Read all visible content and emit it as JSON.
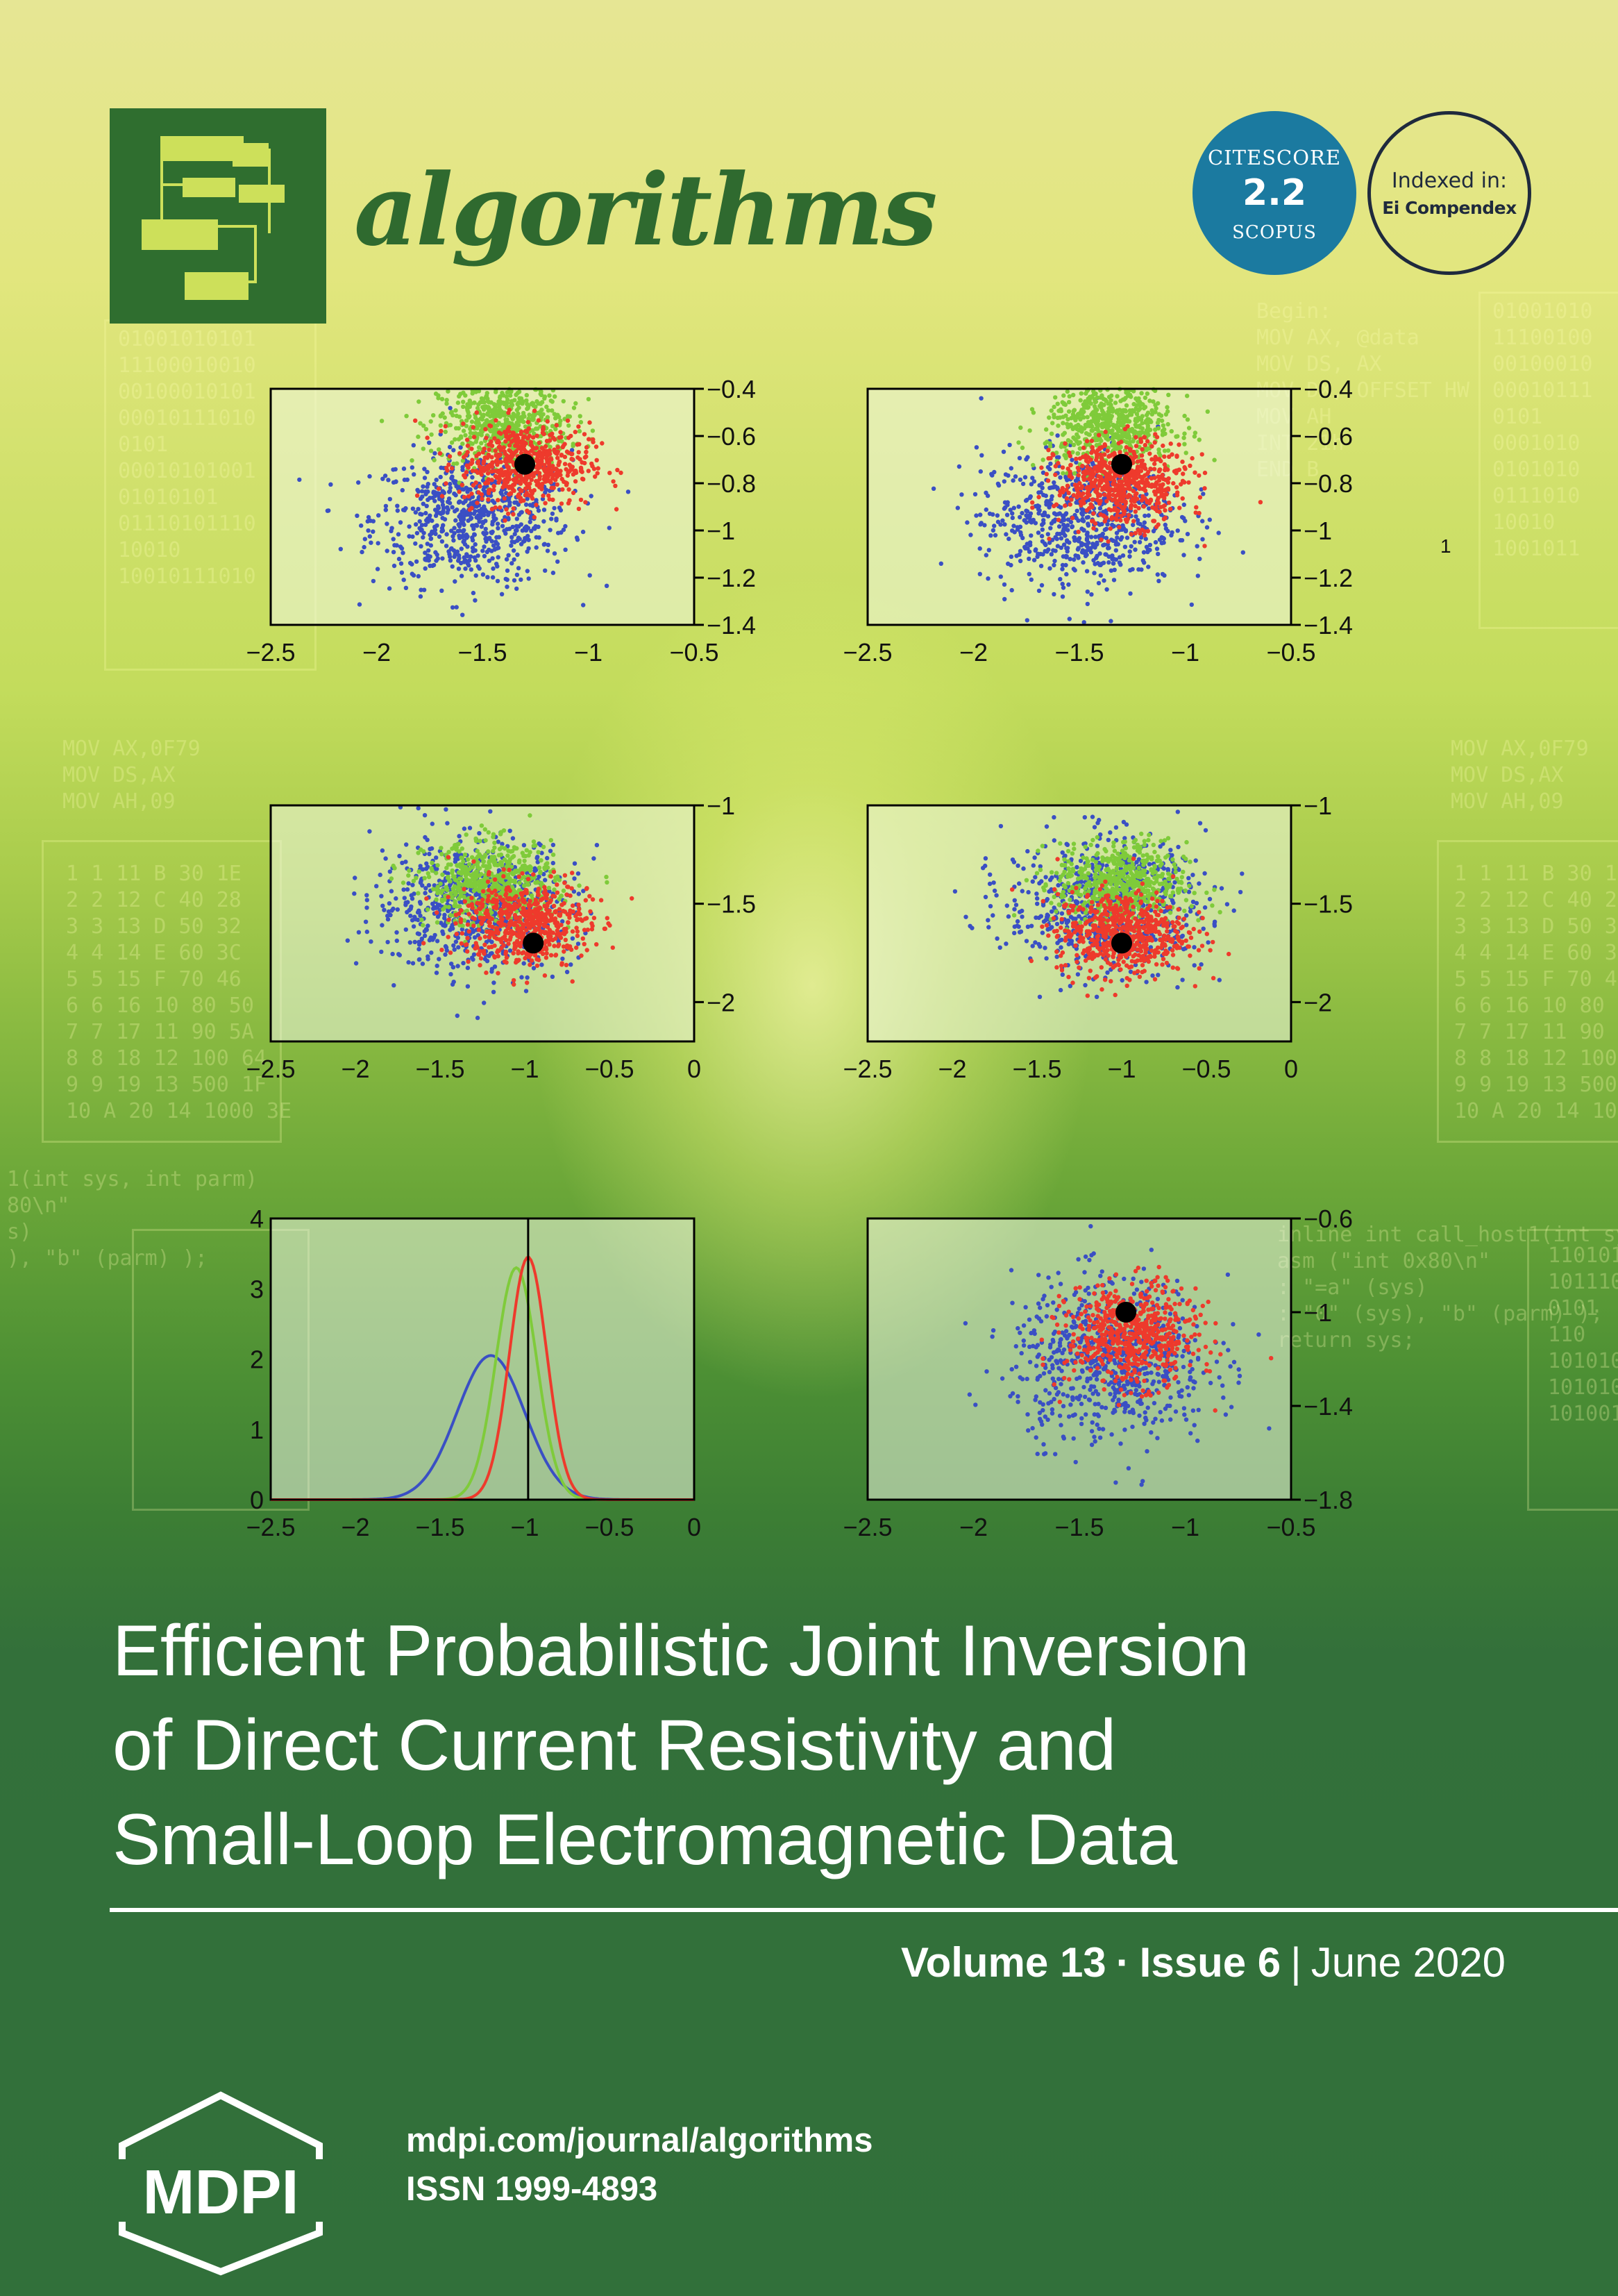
{
  "journal": {
    "name": "algorithms",
    "citescore": {
      "label": "CITESCORE",
      "value": "2.2",
      "source": "SCOPUS"
    },
    "indexed": {
      "label": "Indexed in:",
      "database": "Ei Compendex"
    }
  },
  "plots": {
    "row1_left": {
      "x_ticks": [
        "−2.5",
        "−2",
        "−1.5",
        "−1",
        "−0.5"
      ],
      "y_ticks": [
        "−0.4",
        "−0.6",
        "−0.8",
        "−1",
        "−1.2",
        "−1.4"
      ]
    },
    "row1_right": {
      "x_ticks": [
        "−2.5",
        "−2",
        "−1.5",
        "−1",
        "−0.5"
      ],
      "y_ticks": [
        "−0.4",
        "−0.6",
        "−0.8",
        "−1",
        "−1.2",
        "−1.4"
      ],
      "marker": "1"
    },
    "row2_left": {
      "x_ticks": [
        "−2.5",
        "−2",
        "−1.5",
        "−1",
        "−0.5",
        "0"
      ],
      "y_ticks": [
        "−1",
        "−1.5",
        "−2"
      ]
    },
    "row2_right": {
      "x_ticks": [
        "−2.5",
        "−2",
        "−1.5",
        "−1",
        "−0.5",
        "0"
      ],
      "y_ticks": [
        "−1",
        "−1.5",
        "−2"
      ]
    },
    "row3_left": {
      "x_ticks": [
        "−2.5",
        "−2",
        "−1.5",
        "−1",
        "−0.5",
        "0"
      ],
      "y_ticks": [
        "4",
        "3",
        "2",
        "1",
        "0"
      ]
    },
    "row3_right": {
      "x_ticks": [
        "−2.5",
        "−2",
        "−1.5",
        "−1",
        "−0.5"
      ],
      "y_ticks": [
        "−0.6",
        "−1",
        "−1.4",
        "−1.8"
      ]
    }
  },
  "chart_data": [
    {
      "type": "scatter",
      "xlim": [
        -2.5,
        -0.5
      ],
      "ylim": [
        -1.4,
        -0.4
      ],
      "series": [
        {
          "color": "#3a4fc4",
          "center": [
            -1.55,
            -0.95
          ]
        },
        {
          "color": "#7fcb3a",
          "center": [
            -1.4,
            -0.55
          ]
        },
        {
          "color": "#ee3a2c",
          "center": [
            -1.3,
            -0.72
          ]
        }
      ],
      "marker_point": [
        -1.3,
        -0.72
      ]
    },
    {
      "type": "scatter",
      "xlim": [
        -2.5,
        -0.5
      ],
      "ylim": [
        -1.4,
        -0.4
      ],
      "series": [
        {
          "color": "#3a4fc4",
          "center": [
            -1.5,
            -0.95
          ]
        },
        {
          "color": "#7fcb3a",
          "center": [
            -1.35,
            -0.55
          ]
        },
        {
          "color": "#ee3a2c",
          "center": [
            -1.3,
            -0.8
          ]
        }
      ],
      "marker_point": [
        -1.3,
        -0.72
      ]
    },
    {
      "type": "scatter",
      "xlim": [
        -2.5,
        0
      ],
      "ylim": [
        -2.2,
        -1.0
      ],
      "series": [
        {
          "color": "#3a4fc4",
          "center": [
            -1.3,
            -1.5
          ]
        },
        {
          "color": "#7fcb3a",
          "center": [
            -1.2,
            -1.4
          ]
        },
        {
          "color": "#ee3a2c",
          "center": [
            -1.0,
            -1.6
          ]
        }
      ],
      "marker_point": [
        -0.95,
        -1.7
      ]
    },
    {
      "type": "scatter",
      "xlim": [
        -2.5,
        0
      ],
      "ylim": [
        -2.2,
        -1.0
      ],
      "series": [
        {
          "color": "#3a4fc4",
          "center": [
            -1.1,
            -1.5
          ]
        },
        {
          "color": "#7fcb3a",
          "center": [
            -1.0,
            -1.4
          ]
        },
        {
          "color": "#ee3a2c",
          "center": [
            -1.0,
            -1.65
          ]
        }
      ],
      "marker_point": [
        -1.0,
        -1.7
      ]
    },
    {
      "type": "line",
      "xlim": [
        -2.5,
        0
      ],
      "ylim": [
        0,
        4
      ],
      "vline": -0.98,
      "series": [
        {
          "color": "#3a4fc4",
          "mean": -1.2,
          "sd": 0.2,
          "peak": 2.05
        },
        {
          "color": "#7fcb3a",
          "mean": -1.05,
          "sd": 0.12,
          "peak": 3.3
        },
        {
          "color": "#ee3a2c",
          "mean": -0.98,
          "sd": 0.11,
          "peak": 3.45
        }
      ]
    },
    {
      "type": "scatter",
      "xlim": [
        -2.5,
        -0.5
      ],
      "ylim": [
        -1.8,
        -0.6
      ],
      "series": [
        {
          "color": "#3a4fc4",
          "center": [
            -1.35,
            -1.2
          ]
        },
        {
          "color": "#ee3a2c",
          "center": [
            -1.25,
            -1.1
          ]
        }
      ],
      "marker_point": [
        -1.28,
        -1.0
      ]
    }
  ],
  "article": {
    "title_lines": [
      "Efficient Probabilistic Joint Inversion",
      "of Direct Current Resistivity and",
      "Small-Loop Electromagnetic Data"
    ],
    "volume": "Volume 13",
    "issue": "Issue 6",
    "date": "June 2020"
  },
  "publisher": {
    "name": "MDPI",
    "url": "mdpi.com/journal/algorithms",
    "issn": "ISSN 1999-4893"
  }
}
